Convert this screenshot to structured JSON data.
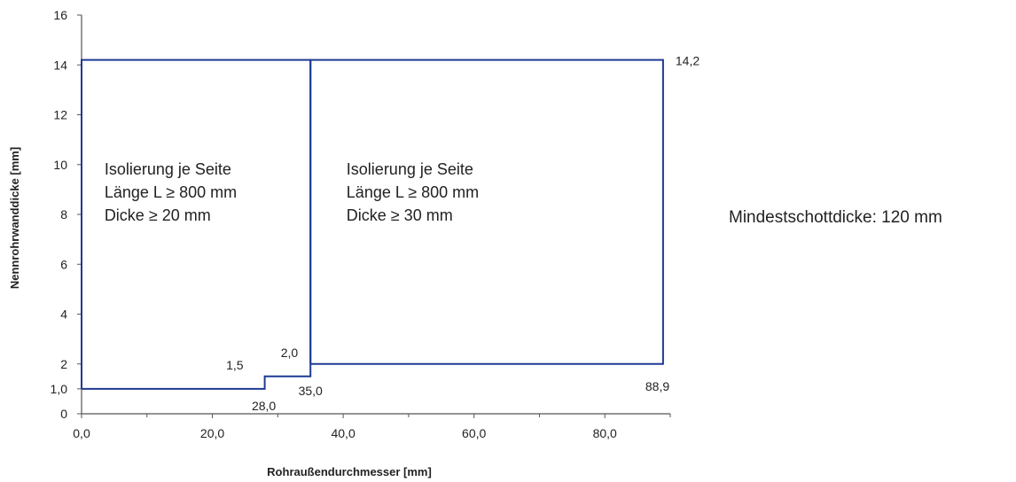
{
  "chart_data": {
    "type": "line",
    "title": "",
    "xlabel": "Rohraußendurchmesser [mm]",
    "ylabel": "Nennrohrwanddicke [mm]",
    "xlim": [
      0,
      90
    ],
    "ylim": [
      0,
      16
    ],
    "x_ticks": [
      "0,0",
      "20,0",
      "40,0",
      "60,0",
      "80,0"
    ],
    "x_tick_values": [
      0,
      20,
      40,
      60,
      80
    ],
    "y_ticks": [
      "0",
      "1,0",
      "2",
      "4",
      "6",
      "8",
      "10",
      "12",
      "14",
      "16"
    ],
    "y_tick_values": [
      0,
      1,
      2,
      4,
      6,
      8,
      10,
      12,
      14,
      16
    ],
    "grid": false,
    "line_color": "#1f3a93",
    "regions": [
      {
        "name": "left",
        "points": [
          [
            0,
            1.0
          ],
          [
            28.0,
            1.0
          ],
          [
            28.0,
            1.5
          ],
          [
            35.0,
            1.5
          ],
          [
            35.0,
            14.2
          ],
          [
            0,
            14.2
          ]
        ],
        "text": [
          "Isolierung je Seite",
          "Länge L ≥ 800 mm",
          "Dicke ≥ 20 mm"
        ]
      },
      {
        "name": "right",
        "points": [
          [
            35.0,
            2.0
          ],
          [
            88.9,
            2.0
          ],
          [
            88.9,
            14.2
          ],
          [
            35.0,
            14.2
          ]
        ],
        "text": [
          "Isolierung je Seite",
          "Länge L ≥ 800 mm",
          "Dicke ≥ 30 mm"
        ]
      }
    ],
    "annotations": [
      {
        "text": "14,2",
        "x": 88.9,
        "y": 14.2
      },
      {
        "text": "88,9",
        "x": 88.9,
        "y": 2.0
      },
      {
        "text": "1,5",
        "x": 28.0,
        "y": 1.5
      },
      {
        "text": "2,0",
        "x": 35.0,
        "y": 2.0
      },
      {
        "text": "28,0",
        "x": 28.0,
        "y": 1.0
      },
      {
        "text": "35,0",
        "x": 35.0,
        "y": 1.5
      }
    ],
    "side_note": "Mindestschottdicke: 120 mm"
  }
}
